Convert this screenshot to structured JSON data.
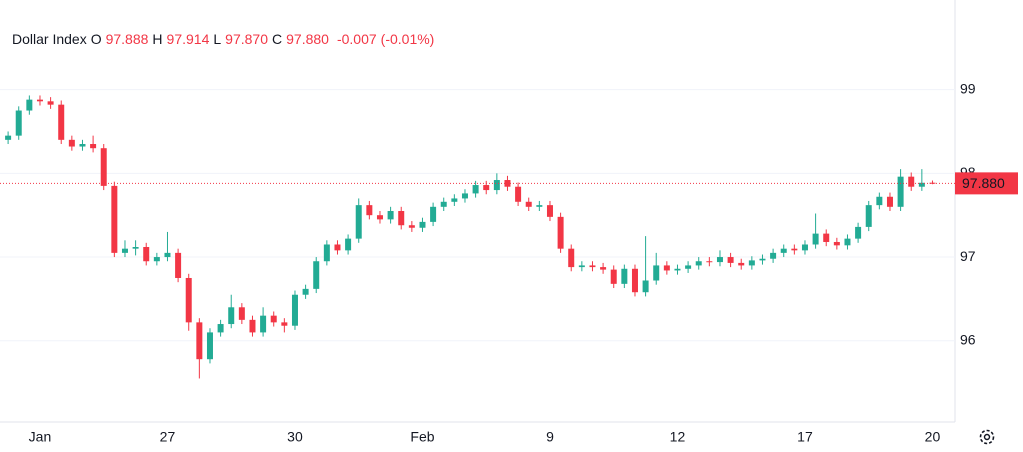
{
  "chart_data": {
    "type": "candlestick",
    "legend": {
      "name": "Dollar Index",
      "fields": [
        {
          "key": "O",
          "value": "97.888"
        },
        {
          "key": "H",
          "value": "97.914"
        },
        {
          "key": "L",
          "value": "97.870"
        },
        {
          "key": "C",
          "value": "97.880"
        }
      ],
      "change": "-0.007",
      "change_pct": "(-0.01%)"
    },
    "categories": [
      null,
      null,
      null,
      "Jan",
      null,
      null,
      null,
      null,
      null,
      null,
      null,
      null,
      null,
      null,
      null,
      "27",
      null,
      null,
      null,
      null,
      null,
      null,
      null,
      null,
      null,
      null,
      null,
      "30",
      null,
      null,
      null,
      null,
      null,
      null,
      null,
      null,
      null,
      null,
      null,
      "Feb",
      null,
      null,
      null,
      null,
      null,
      null,
      null,
      null,
      null,
      null,
      null,
      "9",
      null,
      null,
      null,
      null,
      null,
      null,
      null,
      null,
      null,
      null,
      null,
      "12",
      null,
      null,
      null,
      null,
      null,
      null,
      null,
      null,
      null,
      null,
      null,
      "17",
      null,
      null,
      null,
      null,
      null,
      null,
      null,
      null,
      null,
      null,
      null,
      "20"
    ],
    "series": {
      "open": [
        98.4,
        98.45,
        98.75,
        98.88,
        98.86,
        98.82,
        98.4,
        98.32,
        98.35,
        98.3,
        97.85,
        97.05,
        97.1,
        97.12,
        96.95,
        97.0,
        97.05,
        96.75,
        96.22,
        95.78,
        96.1,
        96.2,
        96.4,
        96.25,
        96.1,
        96.3,
        96.22,
        96.18,
        96.55,
        96.62,
        96.95,
        97.15,
        97.08,
        97.22,
        97.62,
        97.5,
        97.45,
        97.55,
        97.38,
        97.35,
        97.42,
        97.6,
        97.66,
        97.7,
        97.76,
        97.86,
        97.8,
        97.92,
        97.84,
        97.66,
        97.6,
        97.62,
        97.48,
        97.1,
        96.88,
        96.9,
        96.88,
        96.85,
        96.68,
        96.86,
        96.58,
        96.72,
        96.9,
        96.84,
        96.86,
        96.9,
        96.95,
        96.94,
        97.0,
        96.93,
        96.9,
        96.96,
        96.98,
        97.05,
        97.1,
        97.08,
        97.15,
        97.28,
        97.18,
        97.14,
        97.22,
        97.36,
        97.62,
        97.72,
        97.6,
        97.96,
        97.84,
        97.888
      ],
      "high": [
        98.5,
        98.8,
        98.93,
        98.93,
        98.91,
        98.87,
        98.45,
        98.4,
        98.45,
        98.35,
        97.9,
        97.2,
        97.2,
        97.17,
        97.05,
        97.3,
        97.1,
        96.8,
        96.27,
        96.15,
        96.25,
        96.55,
        96.45,
        96.3,
        96.4,
        96.35,
        96.27,
        96.6,
        96.67,
        97.0,
        97.2,
        97.2,
        97.27,
        97.7,
        97.67,
        97.55,
        97.6,
        97.6,
        97.43,
        97.47,
        97.65,
        97.71,
        97.75,
        97.81,
        97.91,
        97.91,
        98.0,
        97.97,
        97.89,
        97.71,
        97.67,
        97.67,
        97.53,
        97.15,
        96.95,
        96.95,
        96.93,
        96.9,
        96.91,
        96.91,
        97.25,
        97.05,
        96.95,
        96.91,
        96.95,
        97.0,
        97.0,
        97.08,
        97.05,
        96.98,
        97.01,
        97.03,
        97.1,
        97.15,
        97.15,
        97.2,
        97.52,
        97.33,
        97.23,
        97.27,
        97.41,
        97.67,
        97.77,
        97.77,
        98.05,
        98.01,
        98.05,
        97.914
      ],
      "low": [
        98.35,
        98.4,
        98.7,
        98.81,
        98.77,
        98.35,
        98.27,
        98.27,
        98.25,
        97.8,
        97.0,
        97.0,
        97.02,
        96.9,
        96.9,
        96.95,
        96.7,
        96.12,
        95.55,
        95.73,
        96.05,
        96.15,
        96.2,
        96.05,
        96.05,
        96.17,
        96.1,
        96.13,
        96.5,
        96.57,
        96.9,
        97.03,
        97.03,
        97.17,
        97.45,
        97.4,
        97.4,
        97.33,
        97.3,
        97.3,
        97.37,
        97.55,
        97.61,
        97.65,
        97.71,
        97.75,
        97.75,
        97.79,
        97.61,
        97.55,
        97.55,
        97.43,
        97.05,
        96.83,
        96.83,
        96.83,
        96.8,
        96.63,
        96.63,
        96.53,
        96.53,
        96.67,
        96.79,
        96.79,
        96.81,
        96.85,
        96.89,
        96.89,
        96.88,
        96.85,
        96.85,
        96.91,
        96.93,
        97.0,
        97.03,
        97.03,
        97.1,
        97.13,
        97.09,
        97.09,
        97.17,
        97.31,
        97.57,
        97.55,
        97.55,
        97.79,
        97.79,
        97.87
      ],
      "close": [
        98.45,
        98.75,
        98.88,
        98.86,
        98.82,
        98.4,
        98.32,
        98.35,
        98.3,
        97.85,
        97.05,
        97.1,
        97.12,
        96.95,
        97.0,
        97.05,
        96.75,
        96.22,
        95.78,
        96.1,
        96.2,
        96.4,
        96.25,
        96.1,
        96.3,
        96.22,
        96.18,
        96.55,
        96.62,
        96.95,
        97.15,
        97.08,
        97.22,
        97.62,
        97.5,
        97.45,
        97.55,
        97.38,
        97.35,
        97.42,
        97.6,
        97.66,
        97.7,
        97.76,
        97.86,
        97.8,
        97.92,
        97.84,
        97.66,
        97.6,
        97.62,
        97.48,
        97.1,
        96.88,
        96.9,
        96.88,
        96.85,
        96.68,
        96.86,
        96.58,
        96.72,
        96.9,
        96.84,
        96.86,
        96.9,
        96.95,
        96.94,
        97.0,
        96.93,
        96.9,
        96.96,
        96.98,
        97.05,
        97.1,
        97.08,
        97.15,
        97.28,
        97.18,
        97.14,
        97.22,
        97.36,
        97.62,
        97.72,
        97.6,
        97.96,
        97.84,
        97.887,
        97.88
      ]
    },
    "up_color": "#22ab94",
    "down_color": "#f23645",
    "ylim": [
      95.03,
      100.07
    ],
    "yticks": [
      96,
      97,
      98,
      99
    ],
    "grid": true,
    "last_price": {
      "value": 97.88,
      "label": "97.880"
    }
  }
}
